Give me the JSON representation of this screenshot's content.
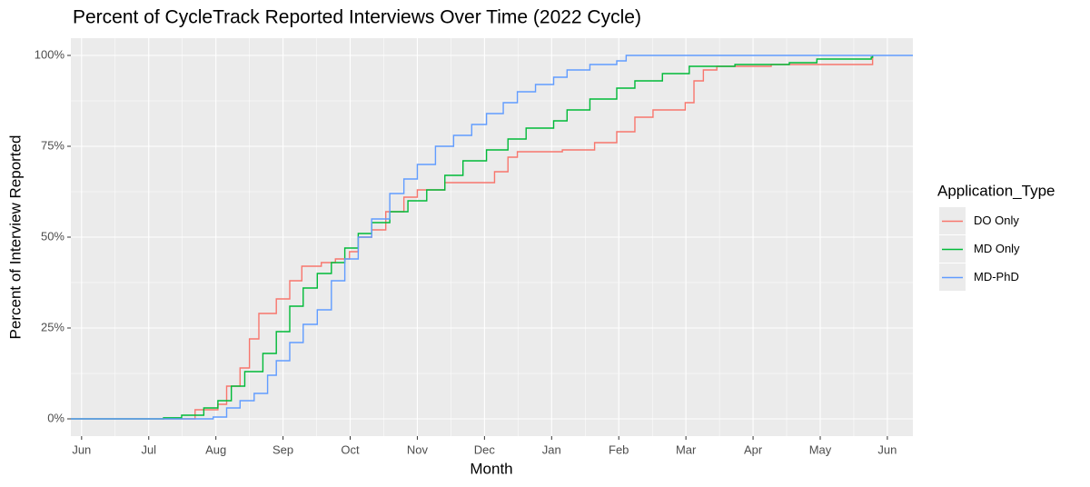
{
  "chart_data": {
    "type": "step",
    "title": "Percent of CycleTrack Reported Interviews Over Time (2022 Cycle)",
    "x_label": "Month",
    "y_label": "Percent of Interview Reported",
    "legend_title": "Application_Type",
    "legend_position": "right",
    "grid": true,
    "minor_grid": true,
    "xlim": [
      -0.16,
      12.38
    ],
    "ylim": [
      -4.75,
      104.75
    ],
    "xticks": [
      {
        "value": 0,
        "label": "Jun"
      },
      {
        "value": 1,
        "label": "Jul"
      },
      {
        "value": 2,
        "label": "Aug"
      },
      {
        "value": 3,
        "label": "Sep"
      },
      {
        "value": 4,
        "label": "Oct"
      },
      {
        "value": 5,
        "label": "Nov"
      },
      {
        "value": 6,
        "label": "Dec"
      },
      {
        "value": 7,
        "label": "Jan"
      },
      {
        "value": 8,
        "label": "Feb"
      },
      {
        "value": 9,
        "label": "Mar"
      },
      {
        "value": 10,
        "label": "Apr"
      },
      {
        "value": 11,
        "label": "May"
      },
      {
        "value": 12,
        "label": "Jun"
      }
    ],
    "yticks": [
      {
        "value": 0,
        "label": "0%"
      },
      {
        "value": 25,
        "label": "25%"
      },
      {
        "value": 50,
        "label": "50%"
      },
      {
        "value": 75,
        "label": "75%"
      },
      {
        "value": 100,
        "label": "100%"
      }
    ],
    "series": [
      {
        "name": "DO Only",
        "color": "#F8766D",
        "x": [
          -0.16,
          1.69,
          2.03,
          2.16,
          2.36,
          2.5,
          2.64,
          2.9,
          3.1,
          3.28,
          3.57,
          3.78,
          3.99,
          4.12,
          4.32,
          4.53,
          4.8,
          5.0,
          5.41,
          6.15,
          6.35,
          6.49,
          7.16,
          7.64,
          7.97,
          8.24,
          8.51,
          8.99,
          9.12,
          9.26,
          9.46,
          10.27,
          11.78
        ],
        "values": [
          0,
          2.5,
          4,
          9,
          14,
          22,
          29,
          33,
          38,
          42,
          43,
          44,
          46,
          50,
          52,
          57,
          61,
          63,
          65,
          68,
          72,
          73.5,
          74,
          76,
          79,
          83,
          85,
          87,
          93,
          96,
          97,
          97.5,
          100
        ]
      },
      {
        "name": "MD Only",
        "color": "#00BA38",
        "x": [
          -0.16,
          1.22,
          1.49,
          1.82,
          2.03,
          2.23,
          2.43,
          2.7,
          2.9,
          3.1,
          3.3,
          3.51,
          3.72,
          3.92,
          4.12,
          4.32,
          4.59,
          4.86,
          5.14,
          5.41,
          5.68,
          6.03,
          6.35,
          6.62,
          7.03,
          7.23,
          7.57,
          7.97,
          8.24,
          8.65,
          9.05,
          9.73,
          10.54,
          10.95,
          11.76,
          11.78
        ],
        "values": [
          0,
          0.3,
          1,
          3,
          5,
          9,
          13,
          18,
          24,
          31,
          36,
          40,
          43,
          47,
          51,
          54,
          57,
          60,
          63,
          67,
          71,
          74,
          77,
          80,
          82,
          85,
          88,
          91,
          93,
          95,
          97,
          97.5,
          98,
          99,
          99.5,
          100
        ]
      },
      {
        "name": "MD-PhD",
        "color": "#619CFF",
        "x": [
          -0.16,
          1.96,
          2.16,
          2.36,
          2.57,
          2.77,
          2.9,
          3.1,
          3.3,
          3.51,
          3.72,
          3.92,
          4.12,
          4.32,
          4.59,
          4.8,
          5.0,
          5.27,
          5.54,
          5.81,
          6.03,
          6.28,
          6.49,
          6.76,
          7.03,
          7.23,
          7.57,
          7.97,
          8.11,
          12.38
        ],
        "values": [
          0,
          0.5,
          3,
          5,
          7,
          12,
          16,
          21,
          26,
          30,
          38,
          44,
          50,
          55,
          62,
          66,
          70,
          75,
          78,
          81,
          84,
          87,
          90,
          92,
          94,
          96,
          97.5,
          98.5,
          100,
          100
        ]
      }
    ]
  }
}
